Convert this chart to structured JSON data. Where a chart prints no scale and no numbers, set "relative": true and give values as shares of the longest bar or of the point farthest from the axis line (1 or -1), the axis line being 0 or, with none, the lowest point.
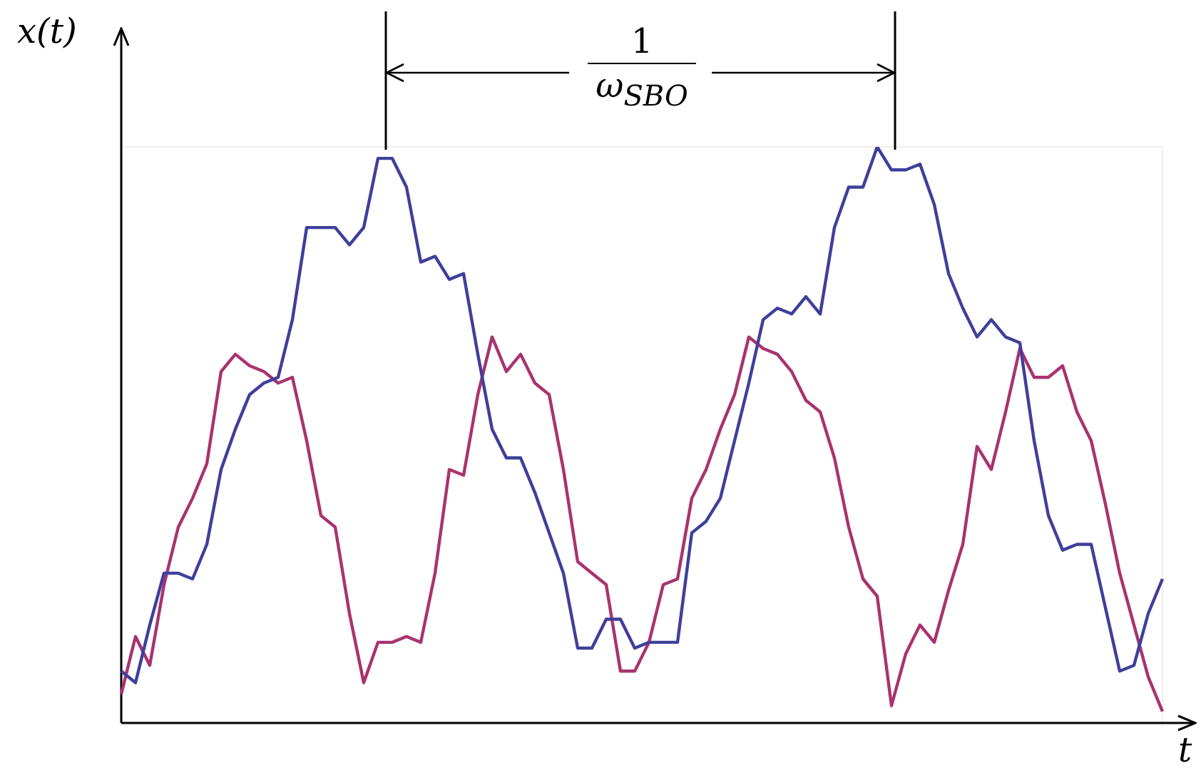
{
  "chart_data": {
    "type": "line",
    "relative": true,
    "xlabel": "t",
    "ylabel": "x(t)",
    "annotations": [
      "1",
      "ω$_{SBO}$"
    ],
    "grid": false,
    "legend": false,
    "marker": "none",
    "line_style": "solid",
    "categories": [
      null,
      null,
      null,
      null,
      null,
      null,
      null,
      null,
      null,
      null,
      null,
      null,
      null,
      null,
      null,
      null,
      null,
      null,
      null,
      null,
      null,
      null,
      null,
      null,
      null,
      null,
      null,
      null,
      null,
      null,
      null,
      null,
      null,
      null,
      null,
      null,
      null,
      null,
      null,
      null,
      null,
      null,
      null,
      null,
      null,
      null,
      null,
      null,
      null,
      null,
      null,
      null,
      null,
      null,
      null,
      null,
      null,
      null,
      null,
      null,
      null,
      null,
      null,
      null,
      null,
      null,
      null,
      null,
      null,
      null,
      null,
      null,
      null,
      null
    ],
    "series": [
      {
        "color": "#3f3f9a",
        "values": [
          0.09,
          0.07,
          0.17,
          0.26,
          0.26,
          0.25,
          0.31,
          0.44,
          0.51,
          0.57,
          0.59,
          0.6,
          0.7,
          0.86,
          0.86,
          0.86,
          0.83,
          0.86,
          0.98,
          0.98,
          0.93,
          0.8,
          0.81,
          0.77,
          0.78,
          0.64,
          0.51,
          0.46,
          0.46,
          0.4,
          0.33,
          0.26,
          0.13,
          0.13,
          0.18,
          0.18,
          0.13,
          0.14,
          0.14,
          0.14,
          0.33,
          0.35,
          0.39,
          0.49,
          0.59,
          0.7,
          0.72,
          0.71,
          0.74,
          0.71,
          0.86,
          0.93,
          0.93,
          1,
          0.96,
          0.96,
          0.97,
          0.9,
          0.78,
          0.72,
          0.67,
          0.7,
          0.67,
          0.66,
          0.49,
          0.36,
          0.3,
          0.31,
          0.31,
          0.2,
          0.09,
          0.1,
          0.19,
          0.25
        ]
      },
      {
        "color": "#a8336f",
        "values": [
          0.05,
          0.15,
          0.1,
          0.24,
          0.34,
          0.39,
          0.45,
          0.61,
          0.64,
          0.62,
          0.61,
          0.59,
          0.6,
          0.49,
          0.36,
          0.34,
          0.19,
          0.07,
          0.14,
          0.14,
          0.15,
          0.14,
          0.26,
          0.44,
          0.43,
          0.57,
          0.67,
          0.61,
          0.64,
          0.59,
          0.57,
          0.44,
          0.28,
          0.26,
          0.24,
          0.09,
          0.09,
          0.14,
          0.24,
          0.25,
          0.39,
          0.44,
          0.51,
          0.57,
          0.67,
          0.65,
          0.64,
          0.61,
          0.56,
          0.54,
          0.46,
          0.34,
          0.25,
          0.22,
          0.03,
          0.12,
          0.17,
          0.14,
          0.23,
          0.31,
          0.48,
          0.44,
          0.54,
          0.65,
          0.6,
          0.6,
          0.62,
          0.54,
          0.49,
          0.38,
          0.26,
          0.17,
          0.08,
          0.02
        ]
      }
    ]
  }
}
